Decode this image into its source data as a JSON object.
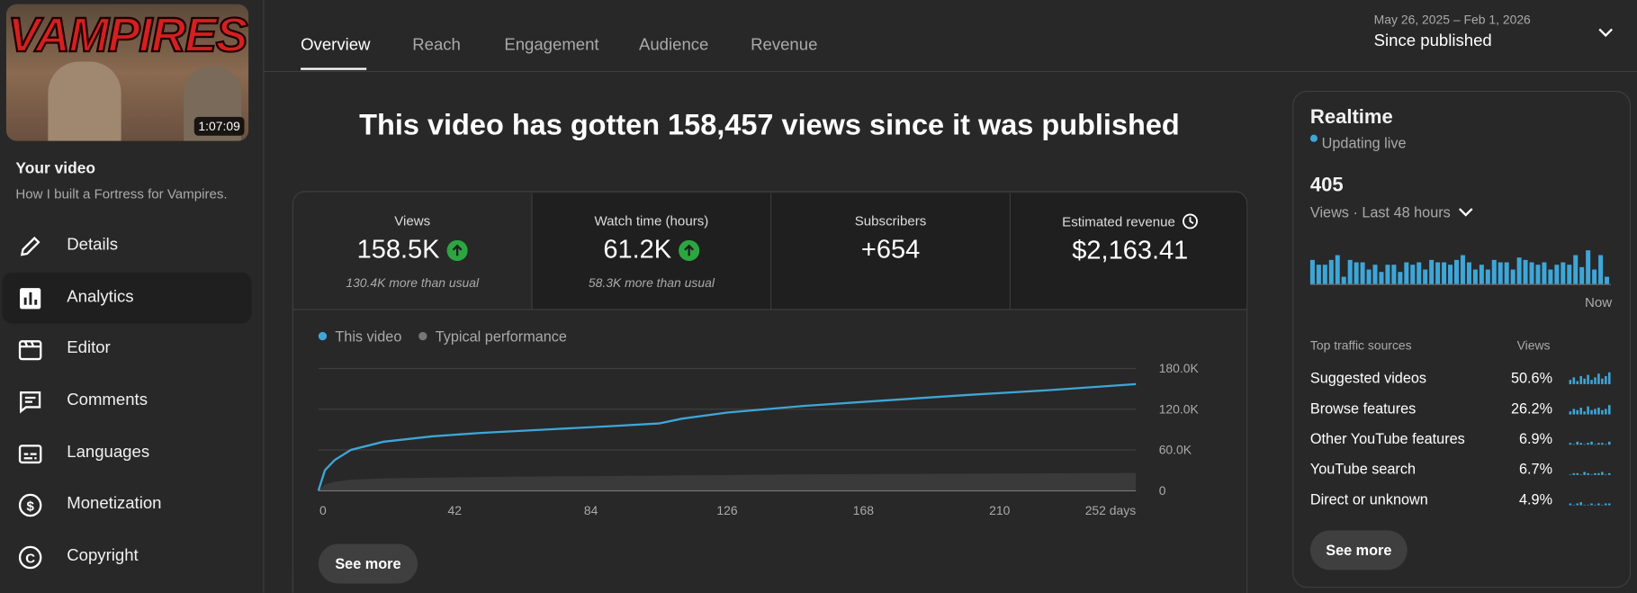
{
  "sidebar": {
    "thumbnail": {
      "title": "VAMPIRES",
      "duration": "1:07:09"
    },
    "heading": "Your video",
    "video_title": "How I built a Fortress for Vampires.",
    "nav": [
      "Details",
      "Analytics",
      "Editor",
      "Comments",
      "Languages",
      "Monetization",
      "Copyright"
    ],
    "active_index": 1
  },
  "tabs": {
    "items": [
      "Overview",
      "Reach",
      "Engagement",
      "Audience",
      "Revenue"
    ],
    "selected": 0
  },
  "date_range": {
    "dates": "May 26, 2025 – Feb 1, 2026",
    "label": "Since published"
  },
  "headline": "This video has gotten 158,457 views since it was published",
  "metrics": [
    {
      "label": "Views",
      "value": "158.5K",
      "trend": "up",
      "note": "130.4K more than usual"
    },
    {
      "label": "Watch time (hours)",
      "value": "61.2K",
      "trend": "up",
      "note": "58.3K more than usual"
    },
    {
      "label": "Subscribers",
      "value": "+654"
    },
    {
      "label": "Estimated revenue",
      "value": "$2,163.41"
    }
  ],
  "chart_data": [
    {
      "type": "line",
      "x": [
        0,
        2,
        5,
        10,
        20,
        35,
        50,
        70,
        90,
        105,
        112,
        126,
        150,
        175,
        200,
        225,
        252
      ],
      "series": [
        {
          "name": "This video",
          "color": "#3ea6d8",
          "values": [
            0,
            30000,
            45000,
            60000,
            72000,
            80000,
            85000,
            90000,
            95000,
            99000,
            106000,
            115000,
            125000,
            133000,
            141000,
            148000,
            157000
          ]
        },
        {
          "name": "Typical performance",
          "color": "#3a3a3a",
          "values": [
            0,
            9000,
            13000,
            16000,
            18000,
            19000,
            20000,
            21000,
            21500,
            22000,
            22500,
            23000,
            24000,
            24500,
            25000,
            25500,
            26000
          ]
        }
      ],
      "xlim": [
        0,
        252
      ],
      "xticks": [
        0,
        42,
        84,
        126,
        168,
        210,
        {
          "value": 252,
          "label": "252 days"
        }
      ],
      "ylim": [
        0,
        180000
      ],
      "yticks": [
        0,
        {
          "value": 60000,
          "label": "60.0K"
        },
        {
          "value": 120000,
          "label": "120.0K"
        },
        {
          "value": 180000,
          "label": "180.0K"
        }
      ],
      "grid": true
    },
    {
      "type": "bar",
      "color": "#3ea6d8",
      "values": [
        10,
        8,
        8,
        10,
        12,
        3,
        10,
        9,
        9,
        6,
        8,
        5,
        8,
        8,
        5,
        9,
        8,
        9,
        6,
        10,
        9,
        9,
        8,
        10,
        12,
        9,
        6,
        8,
        6,
        10,
        9,
        9,
        6,
        11,
        10,
        9,
        8,
        9,
        6,
        8,
        9,
        8,
        12,
        7,
        14,
        6,
        12,
        3
      ]
    }
  ],
  "see_more": "See more",
  "realtime": {
    "title": "Realtime",
    "status": "Updating live",
    "value": "405",
    "caption": "Views · Last 48 hours",
    "now": "Now",
    "traffic_header": [
      "Top traffic sources",
      "Views"
    ],
    "traffic": [
      {
        "name": "Suggested videos",
        "share": "50.6%",
        "spark": [
          3,
          5,
          2,
          6,
          4,
          7,
          3,
          5,
          8,
          4,
          6,
          9
        ]
      },
      {
        "name": "Browse features",
        "share": "26.2%",
        "spark": [
          2,
          4,
          3,
          5,
          2,
          6,
          3,
          4,
          5,
          3,
          4,
          7
        ]
      },
      {
        "name": "Other YouTube features",
        "share": "6.9%",
        "spark": [
          1,
          0,
          2,
          1,
          0,
          1,
          2,
          0,
          1,
          1,
          0,
          2
        ]
      },
      {
        "name": "YouTube search",
        "share": "6.7%",
        "spark": [
          0,
          1,
          1,
          0,
          2,
          1,
          0,
          1,
          1,
          2,
          0,
          1
        ]
      },
      {
        "name": "Direct or unknown",
        "share": "4.9%",
        "spark": [
          1,
          0,
          1,
          2,
          0,
          0,
          1,
          0,
          1,
          0,
          1,
          1
        ]
      }
    ],
    "button": "See more"
  }
}
